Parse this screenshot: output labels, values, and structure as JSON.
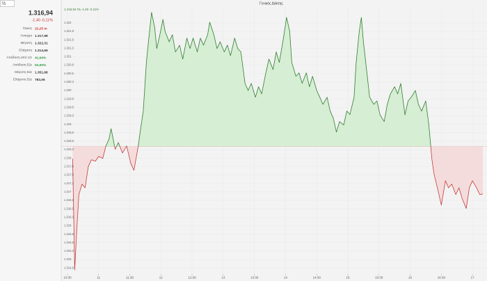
{
  "search": "ΓΔ",
  "quote": {
    "last": "1.316,94",
    "change": "-1,40",
    "change_pct": "-0,11%"
  },
  "stats": [
    {
      "label": "Όγκος",
      "value": "22,25 m",
      "color": "#d03030"
    },
    {
      "label": "Άνοιγμα",
      "value": "1.317,98"
    },
    {
      "label": "Μέγιστη",
      "value": "1.322,31"
    },
    {
      "label": "Ελάχιστη",
      "value": "1.314,69"
    },
    {
      "label": "Απόδοση από 1/1",
      "value": "41,64%",
      "color": "#2e9a3e"
    },
    {
      "label": "Απόδοση 52ε",
      "value": "53,90%",
      "color": "#2e9a3e"
    },
    {
      "label": "Μέγιστη 52ε",
      "value": "1.351,68"
    },
    {
      "label": "Ελάχιστη 52ε",
      "value": "783,06"
    }
  ],
  "chart_data": {
    "type": "line",
    "title": "Γενικός Δείκτης",
    "subtitle": "1.316,94 ΓΔ -1,40 -0,11%",
    "baseline": 1318.34,
    "color_up": "#2f7d2f",
    "color_down": "#c43a3a",
    "fill_up": "#d6eed4",
    "fill_down": "#f5dcdc",
    "grid": true,
    "xlim": [
      624,
      1034
    ],
    "ylim": [
      1314.57,
      1322.47
    ],
    "xticks": [
      {
        "value": 630,
        "label": "10:30"
      },
      {
        "value": 660,
        "label": "11"
      },
      {
        "value": 690,
        "label": "11:30"
      },
      {
        "value": 720,
        "label": "12"
      },
      {
        "value": 750,
        "label": "12:30"
      },
      {
        "value": 780,
        "label": "13"
      },
      {
        "value": 810,
        "label": "13:30"
      },
      {
        "value": 840,
        "label": "14"
      },
      {
        "value": 870,
        "label": "14:30"
      },
      {
        "value": 900,
        "label": "15"
      },
      {
        "value": 930,
        "label": "15:30"
      },
      {
        "value": 960,
        "label": "16"
      },
      {
        "value": 990,
        "label": "16:30"
      },
      {
        "value": 1020,
        "label": "17"
      }
    ],
    "yticks": [
      {
        "value": 1314.75,
        "label": "1.314,8"
      },
      {
        "value": 1315,
        "label": "1.315"
      },
      {
        "value": 1315.25,
        "label": "1.315,3"
      },
      {
        "value": 1315.5,
        "label": "1.315,5"
      },
      {
        "value": 1315.75,
        "label": "1.315,8"
      },
      {
        "value": 1316,
        "label": "1.316"
      },
      {
        "value": 1316.25,
        "label": "1.316,3"
      },
      {
        "value": 1316.5,
        "label": "1.316,5"
      },
      {
        "value": 1316.75,
        "label": "1.316,8"
      },
      {
        "value": 1317,
        "label": "1.317"
      },
      {
        "value": 1317.25,
        "label": "1.317,3"
      },
      {
        "value": 1317.5,
        "label": "1.317,5"
      },
      {
        "value": 1317.75,
        "label": "1.317,8"
      },
      {
        "value": 1318,
        "label": "1.318"
      },
      {
        "value": 1318.25,
        "label": "1.318,3"
      },
      {
        "value": 1318.5,
        "label": "1.318,5"
      },
      {
        "value": 1318.75,
        "label": "1.318,8"
      },
      {
        "value": 1319,
        "label": "1.319"
      },
      {
        "value": 1319.25,
        "label": "1.319,3"
      },
      {
        "value": 1319.5,
        "label": "1.319,5"
      },
      {
        "value": 1319.75,
        "label": "1.319,8"
      },
      {
        "value": 1320,
        "label": "1.320"
      },
      {
        "value": 1320.25,
        "label": "1.320,3"
      },
      {
        "value": 1320.5,
        "label": "1.320,5"
      },
      {
        "value": 1320.75,
        "label": "1.320,8"
      },
      {
        "value": 1321,
        "label": "1.321"
      },
      {
        "value": 1321.25,
        "label": "1.321,3"
      },
      {
        "value": 1321.5,
        "label": "1.321,5"
      },
      {
        "value": 1321.75,
        "label": "1.321,8"
      },
      {
        "value": 1322,
        "label": "1.322"
      }
    ],
    "x": [
      635,
      637,
      639,
      641,
      644,
      647,
      650,
      653,
      657,
      660,
      664,
      667,
      670,
      672,
      676,
      679,
      683,
      687,
      691,
      694,
      698,
      700,
      703,
      706,
      708,
      711,
      714,
      716,
      719,
      722,
      724,
      728,
      731,
      734,
      738,
      741,
      745,
      748,
      751,
      755,
      758,
      761,
      765,
      767,
      771,
      774,
      777,
      781,
      784,
      787,
      791,
      794,
      797,
      801,
      804,
      807,
      811,
      814,
      817,
      821,
      824,
      828,
      831,
      834,
      838,
      841,
      844,
      846,
      850,
      853,
      856,
      860,
      863,
      866,
      870,
      873,
      876,
      880,
      883,
      886,
      889,
      892,
      896,
      899,
      902,
      906,
      908,
      911,
      913,
      915,
      918,
      921,
      925,
      928,
      931,
      935,
      938,
      941,
      945,
      948,
      951,
      955,
      958,
      961,
      965,
      968,
      971,
      975,
      978,
      981,
      983,
      987,
      990,
      994,
      997,
      1000,
      1004,
      1007,
      1010,
      1014,
      1017,
      1020,
      1024,
      1027,
      1030
    ],
    "values": [
      1317.98,
      1314.69,
      1315.89,
      1316.92,
      1317.23,
      1317.12,
      1317.74,
      1317.95,
      1317.91,
      1318.05,
      1317.99,
      1318.36,
      1318.56,
      1318.87,
      1318.26,
      1318.46,
      1318.15,
      1318.36,
      1317.84,
      1317.64,
      1318.32,
      1318.77,
      1319.39,
      1320.83,
      1321.44,
      1322.31,
      1321.86,
      1321.24,
      1321.65,
      1322.1,
      1321.75,
      1321.44,
      1321.65,
      1321.14,
      1321.34,
      1320.93,
      1321.55,
      1321.24,
      1321.55,
      1321.14,
      1321.55,
      1321.34,
      1321.65,
      1322.02,
      1321.65,
      1321.24,
      1321.44,
      1321.14,
      1321.34,
      1321.03,
      1321.55,
      1321.24,
      1321.14,
      1320.21,
      1320.0,
      1320.21,
      1319.8,
      1320.11,
      1319.9,
      1320.52,
      1320.93,
      1320.62,
      1321.14,
      1320.83,
      1321.55,
      1322.16,
      1321.75,
      1320.83,
      1320.42,
      1320.52,
      1320.21,
      1320.52,
      1320.11,
      1320.42,
      1320.0,
      1319.8,
      1319.59,
      1319.8,
      1319.39,
      1319.18,
      1318.77,
      1319.08,
      1318.98,
      1319.39,
      1319.29,
      1319.8,
      1320.83,
      1321.75,
      1322.16,
      1321.44,
      1320.62,
      1319.8,
      1319.59,
      1319.69,
      1319.28,
      1319.08,
      1319.59,
      1319.9,
      1320.11,
      1319.9,
      1320.21,
      1319.28,
      1319.69,
      1319.8,
      1320.0,
      1319.59,
      1319.39,
      1319.69,
      1318.98,
      1317.95,
      1317.53,
      1317.02,
      1316.61,
      1317.33,
      1317.12,
      1317.23,
      1316.92,
      1317.12,
      1316.81,
      1316.51,
      1317.12,
      1317.33,
      1317.12,
      1316.92,
      1316.94
    ]
  }
}
